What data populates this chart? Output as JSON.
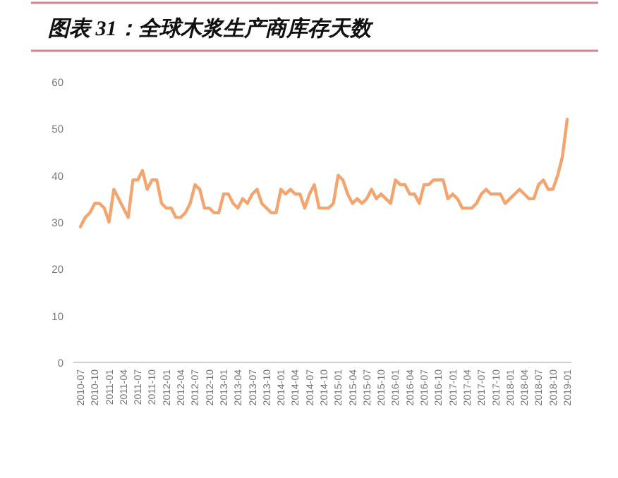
{
  "chart_data": {
    "type": "line",
    "title": "图表 31：全球木浆生产商库存天数",
    "categories": [
      "2010-07",
      null,
      null,
      "2010-10",
      null,
      null,
      "2011-01",
      null,
      null,
      "2011-04",
      null,
      null,
      "2011-07",
      null,
      null,
      "2011-10",
      null,
      null,
      "2012-01",
      null,
      null,
      "2012-04",
      null,
      null,
      "2012-07",
      null,
      null,
      "2012-10",
      null,
      null,
      "2013-01",
      null,
      null,
      "2013-04",
      null,
      null,
      "2013-07",
      null,
      null,
      "2013-10",
      null,
      null,
      "2014-01",
      null,
      null,
      "2014-04",
      null,
      null,
      "2014-07",
      null,
      null,
      "2014-10",
      null,
      null,
      "2015-01",
      null,
      null,
      "2015-04",
      null,
      null,
      "2015-07",
      null,
      null,
      "2015-10",
      null,
      null,
      "2016-01",
      null,
      null,
      "2016-04",
      null,
      null,
      "2016-07",
      null,
      null,
      "2016-10",
      null,
      null,
      "2017-01",
      null,
      null,
      "2017-04",
      null,
      null,
      "2017-07",
      null,
      null,
      "2017-10",
      null,
      null,
      "2018-01",
      null,
      null,
      "2018-04",
      null,
      null,
      "2018-07",
      null,
      null,
      "2018-10",
      null,
      null,
      "2019-01"
    ],
    "series": [
      {
        "color": "#f4a46e",
        "values": [
          29,
          31,
          32,
          34,
          34,
          33,
          30,
          37,
          35,
          33,
          31,
          39,
          39,
          41,
          37,
          39,
          39,
          34,
          33,
          33,
          31,
          31,
          32,
          34,
          38,
          37,
          33,
          33,
          32,
          32,
          36,
          36,
          34,
          33,
          35,
          34,
          36,
          37,
          34,
          33,
          32,
          32,
          37,
          36,
          37,
          36,
          36,
          33,
          36,
          38,
          33,
          33,
          33,
          34,
          40,
          39,
          36,
          34,
          35,
          34,
          35,
          37,
          35,
          36,
          35,
          34,
          39,
          38,
          38,
          36,
          36,
          34,
          38,
          38,
          39,
          39,
          39,
          35,
          36,
          35,
          33,
          33,
          33,
          34,
          36,
          37,
          36,
          36,
          36,
          34,
          35,
          36,
          37,
          36,
          35,
          35,
          38,
          39,
          37,
          37,
          40,
          44,
          52
        ]
      }
    ],
    "ylim": [
      0,
      60
    ],
    "yticks": [
      0,
      10,
      20,
      30,
      40,
      50,
      60
    ],
    "grid": false,
    "marker": "none",
    "line_style": "solid"
  }
}
